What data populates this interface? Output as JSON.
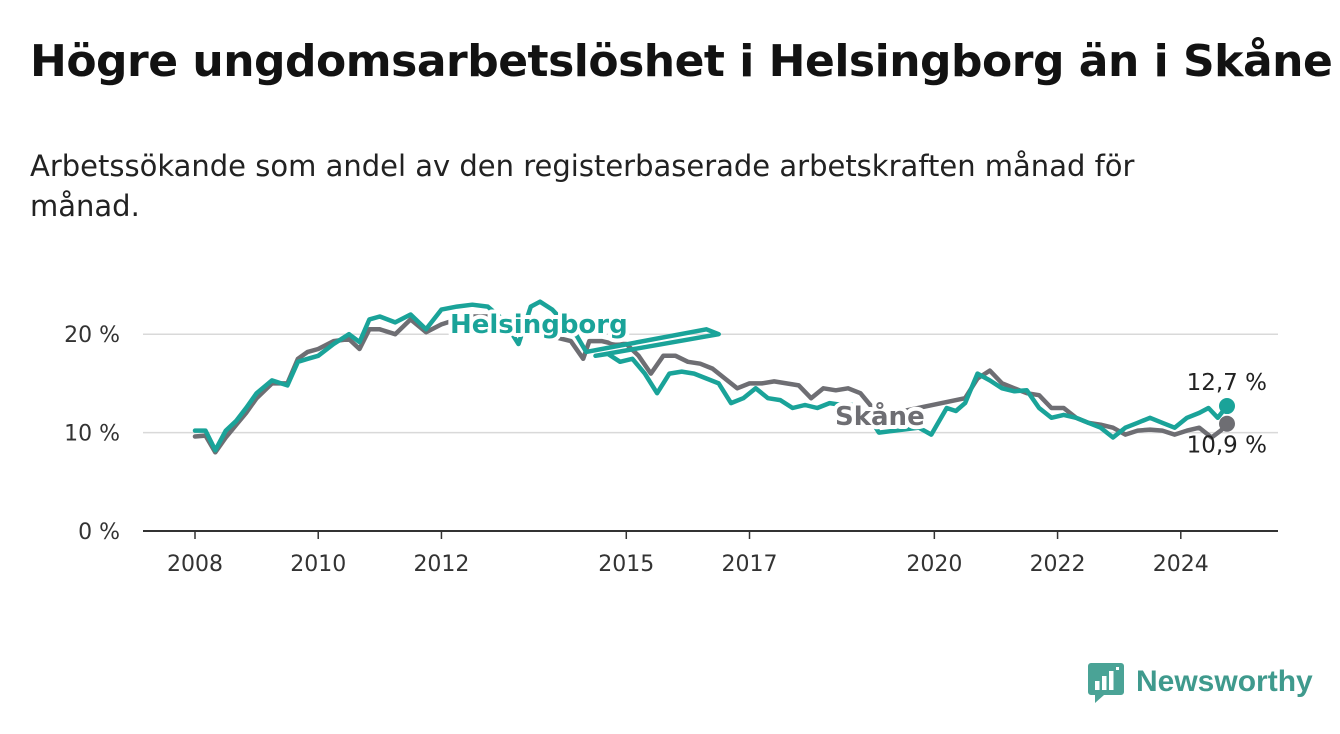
{
  "title": "Högre ungdomsarbetslöshet i Helsingborg än i Skåne",
  "subtitle": "Arbetssökande som andel av den registerbaserade arbetskraften månad för månad.",
  "brand": {
    "name": "Newsworthy",
    "icon": "bar-chart-speech-icon"
  },
  "colors": {
    "helsingborg": "#1aa399",
    "skane": "#6e6e73",
    "grid": "#d9d9d9",
    "axis": "#333333"
  },
  "chart_data": {
    "type": "line",
    "title": "Högre ungdomsarbetslöshet i Helsingborg än i Skåne",
    "xlabel": "",
    "ylabel": "",
    "xlim": [
      2008.0,
      2024.75
    ],
    "ylim": [
      0,
      25
    ],
    "x_ticks": [
      2008,
      2010,
      2012,
      2015,
      2017,
      2020,
      2022,
      2024
    ],
    "x_tick_labels": [
      "2008",
      "2010",
      "2012",
      "2015",
      "2017",
      "2020",
      "2022",
      "2024"
    ],
    "y_ticks": [
      0,
      10,
      20
    ],
    "y_tick_labels": [
      "0 %",
      "10 %",
      "20 %"
    ],
    "series": [
      {
        "name": "Skåne",
        "label": "Skåne",
        "color": "#6e6e73",
        "end_label": "10,9 %",
        "points": [
          [
            2008.0,
            9.6
          ],
          [
            2008.17,
            9.7
          ],
          [
            2008.33,
            8.0
          ],
          [
            2008.5,
            9.5
          ],
          [
            2008.67,
            10.8
          ],
          [
            2008.83,
            12.0
          ],
          [
            2009.0,
            13.5
          ],
          [
            2009.25,
            15.0
          ],
          [
            2009.5,
            15.0
          ],
          [
            2009.67,
            17.5
          ],
          [
            2009.83,
            18.2
          ],
          [
            2010.0,
            18.5
          ],
          [
            2010.25,
            19.3
          ],
          [
            2010.5,
            19.5
          ],
          [
            2010.67,
            18.5
          ],
          [
            2010.83,
            20.5
          ],
          [
            2011.0,
            20.5
          ],
          [
            2011.25,
            20.0
          ],
          [
            2011.5,
            21.5
          ],
          [
            2011.75,
            20.2
          ],
          [
            2012.0,
            21.0
          ],
          [
            2012.25,
            21.5
          ],
          [
            2012.5,
            21.8
          ],
          [
            2012.75,
            21.8
          ],
          [
            2012.85,
            22.0
          ],
          [
            2013.0,
            21.0
          ],
          [
            2014.1,
            19.3
          ],
          [
            2014.3,
            17.5
          ],
          [
            2014.4,
            19.3
          ],
          [
            2014.6,
            19.3
          ],
          [
            2014.8,
            19.0
          ],
          [
            2015.0,
            19.0
          ],
          [
            2015.2,
            17.8
          ],
          [
            2015.4,
            16.0
          ],
          [
            2015.6,
            17.8
          ],
          [
            2015.8,
            17.8
          ],
          [
            2016.0,
            17.2
          ],
          [
            2016.2,
            17.0
          ],
          [
            2016.4,
            16.5
          ],
          [
            2016.6,
            15.5
          ],
          [
            2016.8,
            14.5
          ],
          [
            2017.0,
            15.0
          ],
          [
            2017.2,
            15.0
          ],
          [
            2017.4,
            15.2
          ],
          [
            2017.6,
            15.0
          ],
          [
            2017.8,
            14.8
          ],
          [
            2018.0,
            13.5
          ],
          [
            2018.2,
            14.5
          ],
          [
            2018.4,
            14.3
          ],
          [
            2018.6,
            14.5
          ],
          [
            2018.8,
            14.0
          ],
          [
            2019.0,
            12.5
          ],
          [
            2019.2,
            11.8
          ],
          [
            2020.5,
            13.5
          ],
          [
            2020.7,
            15.5
          ],
          [
            2020.9,
            16.3
          ],
          [
            2021.1,
            15.0
          ],
          [
            2021.3,
            14.5
          ],
          [
            2021.5,
            14.0
          ],
          [
            2021.7,
            13.8
          ],
          [
            2021.9,
            12.5
          ],
          [
            2022.1,
            12.5
          ],
          [
            2022.3,
            11.5
          ],
          [
            2022.5,
            11.0
          ],
          [
            2022.7,
            10.8
          ],
          [
            2022.9,
            10.5
          ],
          [
            2023.1,
            9.8
          ],
          [
            2023.3,
            10.2
          ],
          [
            2023.5,
            10.3
          ],
          [
            2023.7,
            10.2
          ],
          [
            2023.9,
            9.8
          ],
          [
            2024.1,
            10.2
          ],
          [
            2024.3,
            10.5
          ],
          [
            2024.5,
            9.5
          ],
          [
            2024.65,
            10.2
          ],
          [
            2024.75,
            10.9
          ]
        ]
      },
      {
        "name": "Helsingborg",
        "label": "Helsingborg",
        "color": "#1aa399",
        "end_label": "12,7 %",
        "points": [
          [
            2008.0,
            10.2
          ],
          [
            2008.17,
            10.2
          ],
          [
            2008.33,
            8.2
          ],
          [
            2008.5,
            10.2
          ],
          [
            2008.67,
            11.2
          ],
          [
            2008.83,
            12.5
          ],
          [
            2009.0,
            14.0
          ],
          [
            2009.25,
            15.3
          ],
          [
            2009.5,
            14.8
          ],
          [
            2009.67,
            17.2
          ],
          [
            2009.83,
            17.5
          ],
          [
            2010.0,
            17.8
          ],
          [
            2010.25,
            19.0
          ],
          [
            2010.5,
            20.0
          ],
          [
            2010.67,
            19.2
          ],
          [
            2010.83,
            21.5
          ],
          [
            2011.0,
            21.8
          ],
          [
            2011.25,
            21.2
          ],
          [
            2011.5,
            22.0
          ],
          [
            2011.75,
            20.5
          ],
          [
            2012.0,
            22.5
          ],
          [
            2012.25,
            22.8
          ],
          [
            2012.5,
            23.0
          ],
          [
            2012.75,
            22.8
          ],
          [
            2012.9,
            22.0
          ],
          [
            2013.0,
            21.5
          ],
          [
            2013.15,
            20.0
          ],
          [
            2013.25,
            19.0
          ],
          [
            2013.45,
            22.8
          ],
          [
            2013.6,
            23.3
          ],
          [
            2013.8,
            22.5
          ],
          [
            2014.2,
            19.8
          ],
          [
            2014.35,
            18.2
          ],
          [
            2016.3,
            20.5
          ],
          [
            2016.5,
            20.0
          ],
          [
            2014.5,
            17.8
          ],
          [
            2014.7,
            18.0
          ],
          [
            2014.9,
            17.2
          ],
          [
            2015.1,
            17.5
          ],
          [
            2015.3,
            16.0
          ],
          [
            2015.5,
            14.0
          ],
          [
            2015.7,
            16.0
          ],
          [
            2015.9,
            16.2
          ],
          [
            2016.1,
            16.0
          ],
          [
            2016.3,
            15.5
          ],
          [
            2016.5,
            15.0
          ],
          [
            2016.7,
            13.0
          ],
          [
            2016.9,
            13.5
          ],
          [
            2017.1,
            14.5
          ],
          [
            2017.3,
            13.5
          ],
          [
            2017.5,
            13.3
          ],
          [
            2017.7,
            12.5
          ],
          [
            2017.9,
            12.8
          ],
          [
            2018.1,
            12.5
          ],
          [
            2018.3,
            13.0
          ],
          [
            2018.5,
            12.8
          ],
          [
            2018.7,
            12.8
          ],
          [
            2018.9,
            12.0
          ],
          [
            2019.1,
            10.0
          ],
          [
            2019.75,
            10.5
          ],
          [
            2019.95,
            9.8
          ],
          [
            2020.2,
            12.5
          ],
          [
            2020.35,
            12.2
          ],
          [
            2020.5,
            13.0
          ],
          [
            2020.7,
            16.0
          ],
          [
            2020.9,
            15.3
          ],
          [
            2021.1,
            14.5
          ],
          [
            2021.3,
            14.2
          ],
          [
            2021.5,
            14.3
          ],
          [
            2021.7,
            12.5
          ],
          [
            2021.9,
            11.5
          ],
          [
            2022.1,
            11.8
          ],
          [
            2022.3,
            11.5
          ],
          [
            2022.5,
            11.0
          ],
          [
            2022.7,
            10.5
          ],
          [
            2022.9,
            9.5
          ],
          [
            2023.1,
            10.5
          ],
          [
            2023.3,
            11.0
          ],
          [
            2023.5,
            11.5
          ],
          [
            2023.7,
            11.0
          ],
          [
            2023.9,
            10.5
          ],
          [
            2024.1,
            11.5
          ],
          [
            2024.3,
            12.0
          ],
          [
            2024.45,
            12.5
          ],
          [
            2024.6,
            11.5
          ],
          [
            2024.75,
            12.7
          ]
        ]
      }
    ]
  }
}
